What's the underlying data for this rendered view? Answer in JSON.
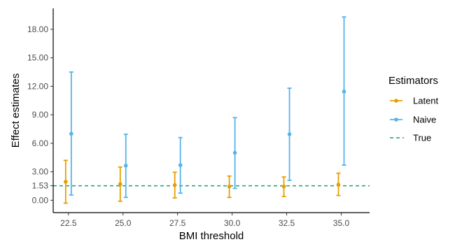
{
  "chart_data": {
    "type": "scatter",
    "xlabel": "BMI threshold",
    "ylabel": "Effect estimates",
    "x_ticks": [
      "22.5",
      "25.0",
      "27.5",
      "30.0",
      "32.5",
      "35.0"
    ],
    "y_ticks": [
      "0.00",
      "1.53",
      "3.00",
      "6.00",
      "9.00",
      "12.00",
      "15.00",
      "18.00"
    ],
    "xlim": [
      21.8,
      36.3
    ],
    "ylim": [
      -1.3,
      20.2
    ],
    "grid": false,
    "legend": {
      "title": "Estimators",
      "position": "right",
      "entries": [
        "Latent",
        "Naive",
        "True"
      ]
    },
    "reference_line": {
      "name": "True",
      "y": 1.53,
      "color": "#1b9e77",
      "style": "dashed"
    },
    "series": [
      {
        "name": "Latent",
        "color": "#E69F00",
        "x": [
          22.5,
          25.0,
          27.5,
          30.0,
          32.5,
          35.0
        ],
        "y": [
          1.95,
          1.7,
          1.6,
          1.45,
          1.45,
          1.65
        ],
        "lower": [
          -0.3,
          -0.1,
          0.25,
          0.3,
          0.4,
          0.5
        ],
        "upper": [
          4.2,
          3.5,
          2.95,
          2.55,
          2.45,
          2.85
        ]
      },
      {
        "name": "Naive",
        "color": "#56B4E9",
        "x": [
          22.5,
          25.0,
          27.5,
          30.0,
          32.5,
          35.0
        ],
        "y": [
          7.0,
          3.65,
          3.7,
          5.0,
          6.95,
          11.45
        ],
        "lower": [
          0.55,
          0.3,
          0.75,
          1.25,
          2.1,
          3.7
        ],
        "upper": [
          13.5,
          6.95,
          6.6,
          8.7,
          11.8,
          19.3
        ]
      }
    ]
  }
}
